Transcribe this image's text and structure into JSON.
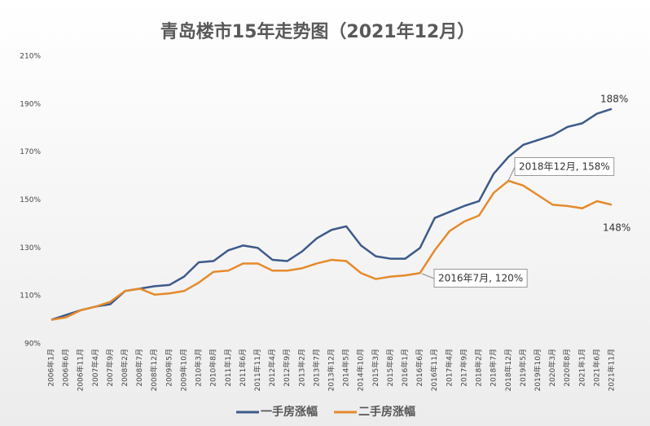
{
  "chart_data": {
    "type": "line",
    "title": "青岛楼市15年走势图（2021年12月）",
    "categories": [
      "2006年1月",
      "2006年6月",
      "2006年11月",
      "2007年4月",
      "2007年9月",
      "2008年2月",
      "2008年7月",
      "2008年12月",
      "2009年5月",
      "2009年10月",
      "2010年3月",
      "2010年8月",
      "2011年1月",
      "2011年6月",
      "2011年11月",
      "2012年4月",
      "2012年9月",
      "2013年2月",
      "2013年7月",
      "2013年12月",
      "2014年5月",
      "2014年10月",
      "2015年3月",
      "2015年8月",
      "2016年1月",
      "2016年6月",
      "2016年11月",
      "2017年4月",
      "2017年9月",
      "2018年2月",
      "2018年7月",
      "2018年12月",
      "2019年5月",
      "2019年10月",
      "2020年3月",
      "2020年8月",
      "2021年1月",
      "2021年6月",
      "2021年11月"
    ],
    "series": [
      {
        "name": "一手房涨幅",
        "color": "#3d5a8a",
        "values": [
          100,
          102,
          104,
          105.5,
          106.5,
          112,
          113,
          114,
          114.5,
          118,
          124,
          124.5,
          129,
          131,
          130,
          125,
          124.5,
          128.5,
          134,
          137.5,
          139,
          131,
          126.5,
          125.5,
          125.5,
          130,
          142.5,
          145,
          147.5,
          149.5,
          161,
          168,
          173,
          175,
          177,
          180.5,
          182,
          186,
          188
        ]
      },
      {
        "name": "二手房涨幅",
        "color": "#e58a2c",
        "values": [
          100,
          101,
          104,
          105.5,
          107.5,
          112,
          113,
          110.5,
          111,
          112,
          115.5,
          120,
          120.5,
          123.5,
          123.5,
          120.5,
          120.5,
          121.5,
          123.5,
          125,
          124.5,
          119.5,
          117,
          118,
          118.5,
          119.5,
          129,
          137,
          141,
          143.5,
          153,
          158,
          156,
          152,
          148,
          147.5,
          146.5,
          149.5,
          148
        ]
      }
    ],
    "annotations": [
      "188%",
      "148%",
      "2018年12月, 158%",
      "2016年7月, 120%"
    ],
    "ylim": [
      90,
      210
    ],
    "yticks": [
      {
        "value": 90,
        "label": "90%"
      },
      {
        "value": 110,
        "label": "110%"
      },
      {
        "value": 130,
        "label": "130%"
      },
      {
        "value": 150,
        "label": "150%"
      },
      {
        "value": 170,
        "label": "170%"
      },
      {
        "value": 190,
        "label": "190%"
      },
      {
        "value": 210,
        "label": "210%"
      }
    ],
    "grid": false,
    "legend": "bottom"
  }
}
